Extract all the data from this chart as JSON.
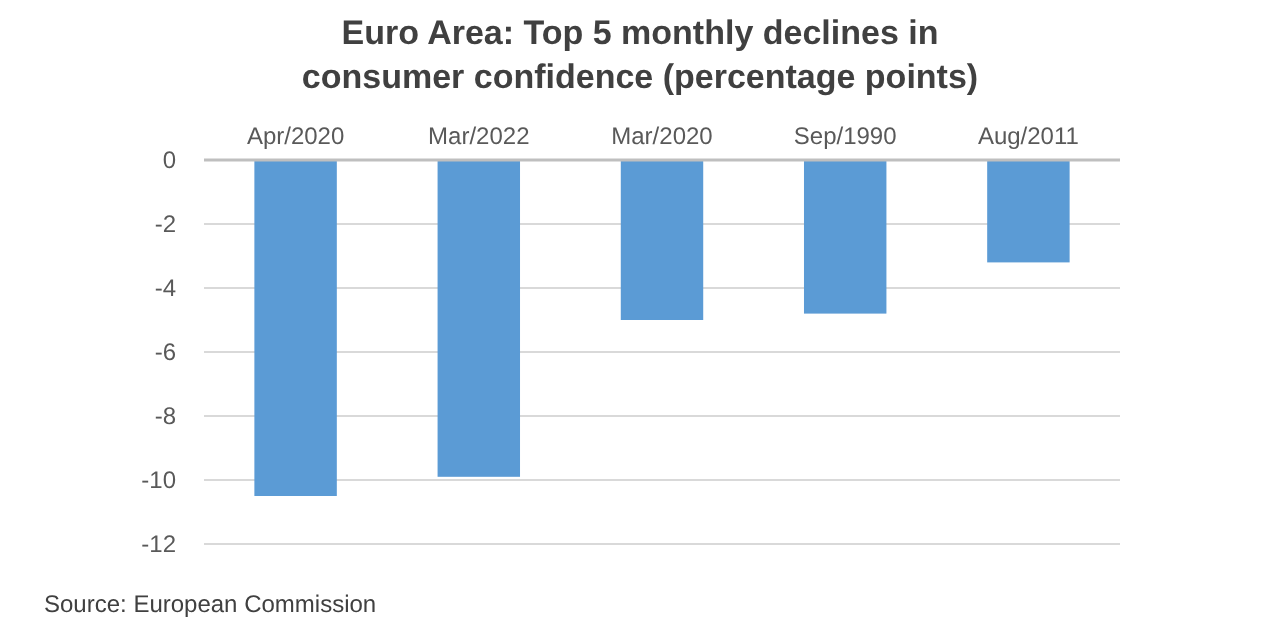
{
  "chart_data": {
    "type": "bar",
    "title": "Euro Area: Top 5 monthly declines in consumer confidence (percentage points)",
    "categories": [
      "Apr/2020",
      "Mar/2022",
      "Mar/2020",
      "Sep/1990",
      "Aug/2011"
    ],
    "values": [
      -10.5,
      -9.9,
      -5.0,
      -4.8,
      -3.2
    ],
    "color": "#5b9bd5",
    "ylim": [
      -12,
      0
    ],
    "yticks": [
      -12,
      -10,
      -8,
      -6,
      -4,
      -2,
      0
    ],
    "grid": "y",
    "annotations": [
      "Source: European Commission"
    ]
  }
}
